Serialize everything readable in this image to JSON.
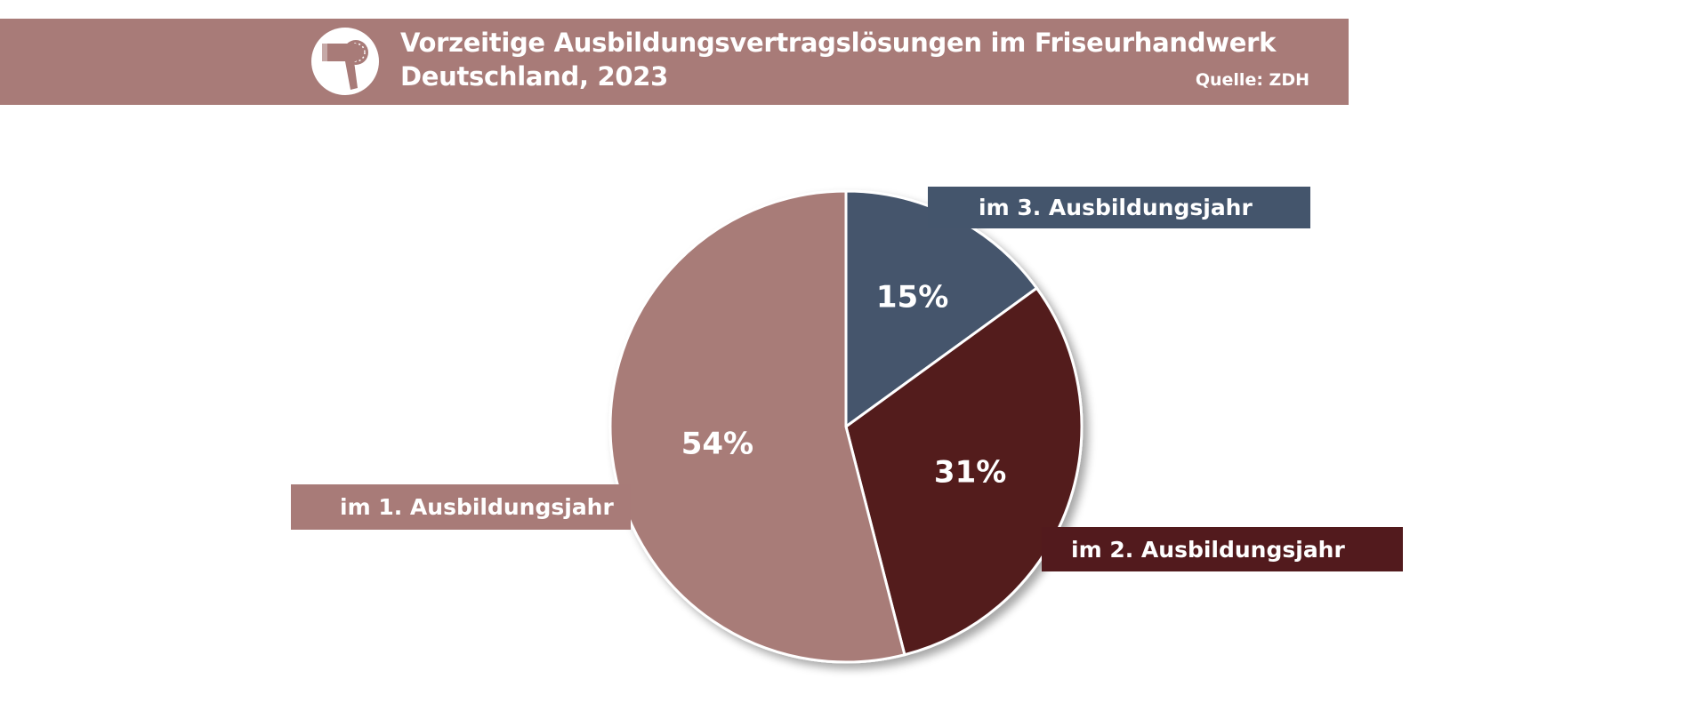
{
  "header": {
    "title_line1": "Vorzeitige Ausbildungsvertragslösungen im Friseurhandwerk",
    "title_line2": "Deutschland, 2023",
    "source": "Quelle: ZDH",
    "icon": "hair-dryer-icon",
    "background_color": "#a87b78"
  },
  "chart_data": {
    "type": "pie",
    "slices": [
      {
        "label": "im 3. Ausbildungsjahr",
        "value": 15,
        "value_label": "15%",
        "color": "#44556c"
      },
      {
        "label": "im 2. Ausbildungsjahr",
        "value": 31,
        "value_label": "31%",
        "color": "#521a1d"
      },
      {
        "label": "im 1. Ausbildungsjahr",
        "value": 54,
        "value_label": "54%",
        "color": "#a87b78"
      }
    ],
    "start_angle": "12 o'clock",
    "direction": "clockwise",
    "legend": "none",
    "labels": "boxed category labels beside slices"
  }
}
